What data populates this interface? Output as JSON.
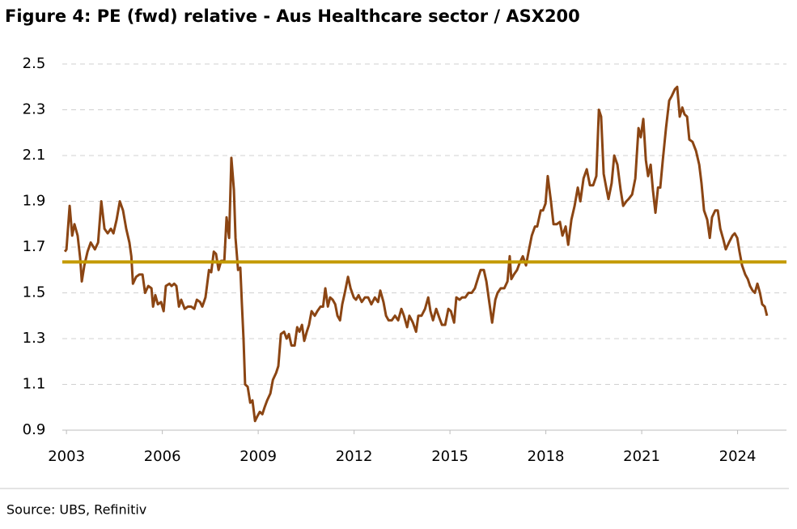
{
  "chart_data": {
    "type": "line",
    "title": "Figure 4: PE (fwd) relative - Aus Healthcare sector / ASX200",
    "source": "Source: UBS, Refinitiv",
    "x": [
      2002.95,
      2003.0,
      2003.1,
      2003.18,
      2003.25,
      2003.35,
      2003.43,
      2003.48,
      2003.56,
      2003.66,
      2003.76,
      2003.89,
      2003.99,
      2004.09,
      2004.19,
      2004.29,
      2004.39,
      2004.47,
      2004.57,
      2004.67,
      2004.77,
      2004.87,
      2004.97,
      2005.03,
      2005.08,
      2005.18,
      2005.28,
      2005.38,
      2005.46,
      2005.56,
      2005.66,
      2005.71,
      2005.78,
      2005.86,
      2005.96,
      2006.04,
      2006.11,
      2006.22,
      2006.29,
      2006.37,
      2006.44,
      2006.52,
      2006.59,
      2006.7,
      2006.8,
      2006.9,
      2007.0,
      2007.08,
      2007.18,
      2007.25,
      2007.35,
      2007.46,
      2007.53,
      2007.61,
      2007.68,
      2007.76,
      2007.84,
      2007.94,
      2008.01,
      2008.09,
      2008.16,
      2008.24,
      2008.29,
      2008.37,
      2008.44,
      2008.49,
      2008.54,
      2008.59,
      2008.67,
      2008.75,
      2008.82,
      2008.9,
      2008.97,
      2009.05,
      2009.13,
      2009.2,
      2009.28,
      2009.38,
      2009.46,
      2009.56,
      2009.63,
      2009.71,
      2009.81,
      2009.89,
      2009.96,
      2010.04,
      2010.14,
      2010.22,
      2010.29,
      2010.37,
      2010.44,
      2010.52,
      2010.59,
      2010.67,
      2010.77,
      2010.85,
      2010.95,
      2011.03,
      2011.1,
      2011.18,
      2011.25,
      2011.33,
      2011.41,
      2011.48,
      2011.56,
      2011.63,
      2011.71,
      2011.81,
      2011.89,
      2011.99,
      2012.06,
      2012.14,
      2012.24,
      2012.34,
      2012.44,
      2012.54,
      2012.65,
      2012.75,
      2012.82,
      2012.92,
      2013.0,
      2013.08,
      2013.18,
      2013.28,
      2013.38,
      2013.48,
      2013.56,
      2013.66,
      2013.73,
      2013.84,
      2013.94,
      2014.01,
      2014.11,
      2014.22,
      2014.32,
      2014.39,
      2014.47,
      2014.57,
      2014.67,
      2014.75,
      2014.85,
      2014.95,
      2015.03,
      2015.13,
      2015.2,
      2015.3,
      2015.38,
      2015.48,
      2015.58,
      2015.68,
      2015.78,
      2015.89,
      2015.96,
      2016.06,
      2016.14,
      2016.24,
      2016.32,
      2016.42,
      2016.49,
      2016.59,
      2016.7,
      2016.8,
      2016.87,
      2016.92,
      2017.0,
      2017.1,
      2017.18,
      2017.28,
      2017.38,
      2017.46,
      2017.56,
      2017.66,
      2017.73,
      2017.84,
      2017.91,
      2017.99,
      2018.06,
      2018.16,
      2018.24,
      2018.34,
      2018.44,
      2018.52,
      2018.62,
      2018.7,
      2018.8,
      2018.9,
      2019.0,
      2019.08,
      2019.18,
      2019.28,
      2019.38,
      2019.48,
      2019.58,
      2019.66,
      2019.73,
      2019.81,
      2019.89,
      2019.96,
      2020.06,
      2020.14,
      2020.24,
      2020.34,
      2020.42,
      2020.52,
      2020.59,
      2020.7,
      2020.8,
      2020.9,
      2020.97,
      2021.05,
      2021.13,
      2021.2,
      2021.28,
      2021.35,
      2021.43,
      2021.51,
      2021.58,
      2021.66,
      2021.76,
      2021.86,
      2021.94,
      2022.04,
      2022.11,
      2022.19,
      2022.27,
      2022.34,
      2022.42,
      2022.49,
      2022.59,
      2022.7,
      2022.8,
      2022.87,
      2022.95,
      2023.05,
      2023.13,
      2023.2,
      2023.3,
      2023.38,
      2023.46,
      2023.56,
      2023.63,
      2023.73,
      2023.84,
      2023.91,
      2023.99,
      2024.06,
      2024.14,
      2024.24,
      2024.32,
      2024.39,
      2024.47,
      2024.54,
      2024.62,
      2024.7,
      2024.77,
      2024.85,
      2024.92
    ],
    "values": [
      1.68,
      1.69,
      1.88,
      1.75,
      1.8,
      1.75,
      1.65,
      1.55,
      1.62,
      1.68,
      1.72,
      1.69,
      1.72,
      1.9,
      1.78,
      1.76,
      1.78,
      1.76,
      1.82,
      1.9,
      1.86,
      1.78,
      1.72,
      1.66,
      1.54,
      1.57,
      1.58,
      1.58,
      1.5,
      1.53,
      1.52,
      1.44,
      1.49,
      1.45,
      1.46,
      1.42,
      1.53,
      1.54,
      1.53,
      1.54,
      1.53,
      1.44,
      1.47,
      1.43,
      1.44,
      1.44,
      1.43,
      1.47,
      1.46,
      1.44,
      1.48,
      1.6,
      1.59,
      1.68,
      1.67,
      1.6,
      1.64,
      1.64,
      1.83,
      1.74,
      2.09,
      1.95,
      1.74,
      1.6,
      1.61,
      1.45,
      1.3,
      1.1,
      1.09,
      1.02,
      1.03,
      0.94,
      0.96,
      0.98,
      0.97,
      1.0,
      1.03,
      1.06,
      1.12,
      1.15,
      1.18,
      1.32,
      1.33,
      1.3,
      1.32,
      1.27,
      1.27,
      1.35,
      1.33,
      1.36,
      1.29,
      1.33,
      1.36,
      1.42,
      1.4,
      1.42,
      1.44,
      1.44,
      1.52,
      1.44,
      1.48,
      1.47,
      1.45,
      1.4,
      1.38,
      1.45,
      1.5,
      1.57,
      1.52,
      1.48,
      1.47,
      1.49,
      1.46,
      1.48,
      1.48,
      1.45,
      1.48,
      1.46,
      1.51,
      1.46,
      1.4,
      1.38,
      1.38,
      1.4,
      1.38,
      1.43,
      1.4,
      1.35,
      1.4,
      1.37,
      1.33,
      1.4,
      1.4,
      1.43,
      1.48,
      1.42,
      1.38,
      1.43,
      1.39,
      1.36,
      1.36,
      1.43,
      1.42,
      1.37,
      1.48,
      1.47,
      1.48,
      1.48,
      1.5,
      1.5,
      1.52,
      1.57,
      1.6,
      1.6,
      1.55,
      1.45,
      1.37,
      1.47,
      1.5,
      1.52,
      1.52,
      1.55,
      1.66,
      1.56,
      1.58,
      1.6,
      1.63,
      1.66,
      1.62,
      1.68,
      1.75,
      1.79,
      1.79,
      1.86,
      1.86,
      1.89,
      2.01,
      1.9,
      1.8,
      1.8,
      1.81,
      1.75,
      1.79,
      1.71,
      1.82,
      1.88,
      1.96,
      1.9,
      2.0,
      2.04,
      1.97,
      1.97,
      2.01,
      2.3,
      2.27,
      2.02,
      1.96,
      1.91,
      1.98,
      2.1,
      2.06,
      1.95,
      1.88,
      1.9,
      1.91,
      1.93,
      2.0,
      2.22,
      2.18,
      2.26,
      2.08,
      2.01,
      2.06,
      1.95,
      1.85,
      1.96,
      1.96,
      2.08,
      2.22,
      2.34,
      2.36,
      2.39,
      2.4,
      2.27,
      2.31,
      2.28,
      2.27,
      2.17,
      2.16,
      2.12,
      2.06,
      1.98,
      1.86,
      1.82,
      1.74,
      1.83,
      1.86,
      1.86,
      1.78,
      1.73,
      1.69,
      1.72,
      1.75,
      1.76,
      1.74,
      1.68,
      1.62,
      1.58,
      1.56,
      1.53,
      1.51,
      1.5,
      1.54,
      1.5,
      1.45,
      1.44,
      1.4
    ],
    "color": "#8b4513",
    "reference_line": {
      "value": 1.635,
      "color": "#c49a00"
    },
    "xlim": [
      2002.87,
      2025.53
    ],
    "xticks": [
      2003,
      2006,
      2009,
      2012,
      2015,
      2018,
      2021,
      2024
    ],
    "ylim": [
      0.9,
      2.5
    ],
    "yticks": [
      0.9,
      1.1,
      1.3,
      1.5,
      1.7,
      1.9,
      2.1,
      2.3,
      2.5
    ],
    "grid": true
  }
}
